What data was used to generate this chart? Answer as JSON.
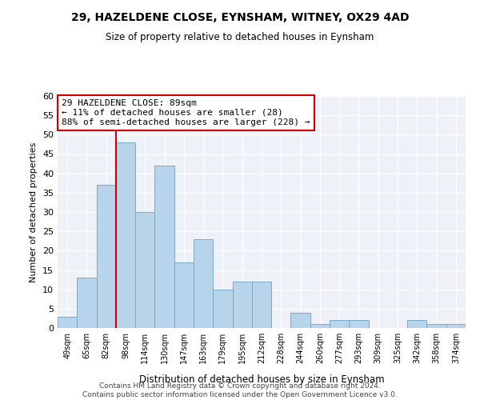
{
  "title": "29, HAZELDENE CLOSE, EYNSHAM, WITNEY, OX29 4AD",
  "subtitle": "Size of property relative to detached houses in Eynsham",
  "xlabel": "Distribution of detached houses by size in Eynsham",
  "ylabel": "Number of detached properties",
  "categories": [
    "49sqm",
    "65sqm",
    "82sqm",
    "98sqm",
    "114sqm",
    "130sqm",
    "147sqm",
    "163sqm",
    "179sqm",
    "195sqm",
    "212sqm",
    "228sqm",
    "244sqm",
    "260sqm",
    "277sqm",
    "293sqm",
    "309sqm",
    "325sqm",
    "342sqm",
    "358sqm",
    "374sqm"
  ],
  "values": [
    3,
    13,
    37,
    48,
    30,
    42,
    17,
    23,
    10,
    12,
    12,
    0,
    4,
    1,
    2,
    2,
    0,
    0,
    2,
    1,
    1
  ],
  "bar_color": "#b8d4ea",
  "bar_edge_color": "#7aaac8",
  "ylim": [
    0,
    60
  ],
  "yticks": [
    0,
    5,
    10,
    15,
    20,
    25,
    30,
    35,
    40,
    45,
    50,
    55,
    60
  ],
  "vline_color": "#cc0000",
  "annotation_title": "29 HAZELDENE CLOSE: 89sqm",
  "annotation_line1": "← 11% of detached houses are smaller (28)",
  "annotation_line2": "88% of semi-detached houses are larger (228) →",
  "annotation_box_color": "#ffffff",
  "annotation_box_edge": "#cc0000",
  "footer_line1": "Contains HM Land Registry data © Crown copyright and database right 2024.",
  "footer_line2": "Contains public sector information licensed under the Open Government Licence v3.0.",
  "background_color": "#eef2f8"
}
